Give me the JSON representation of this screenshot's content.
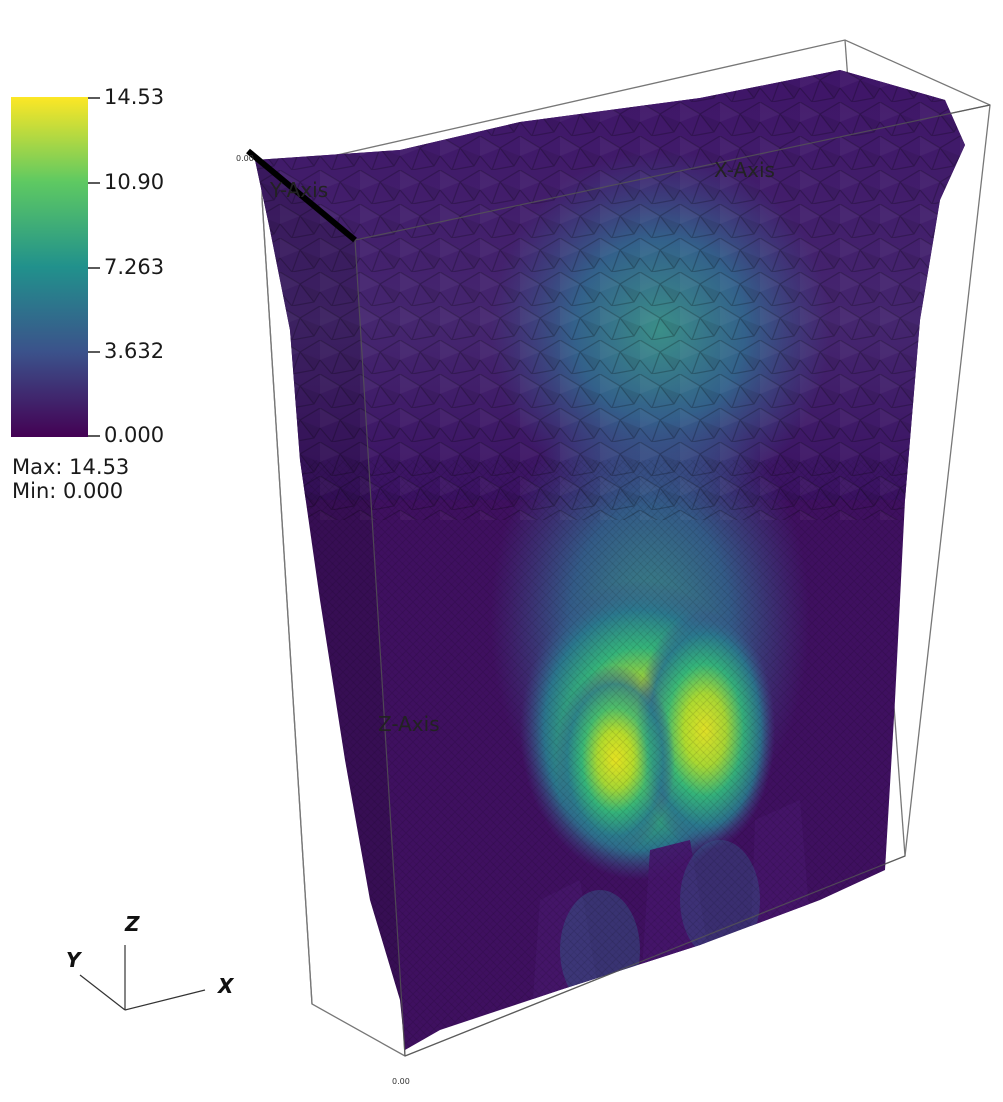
{
  "scalar_bar": {
    "max_label": "14.53",
    "tick_2": "10.90",
    "tick_3": "7.263",
    "tick_4": "3.632",
    "min_label": "0.000",
    "colors": [
      "#fde725",
      "#5ec962",
      "#21918c",
      "#3b528b",
      "#440154"
    ]
  },
  "stats": {
    "max": "Max:  14.53",
    "min": "Min:  0.000"
  },
  "axes_grid": {
    "x_title": "X-Axis",
    "y_title": "Y-Axis",
    "z_title": "Z-Axis",
    "tick_small": "0.00",
    "tick_bottom": "0.00"
  },
  "orientation": {
    "x": "X",
    "y": "Y",
    "z": "Z"
  }
}
